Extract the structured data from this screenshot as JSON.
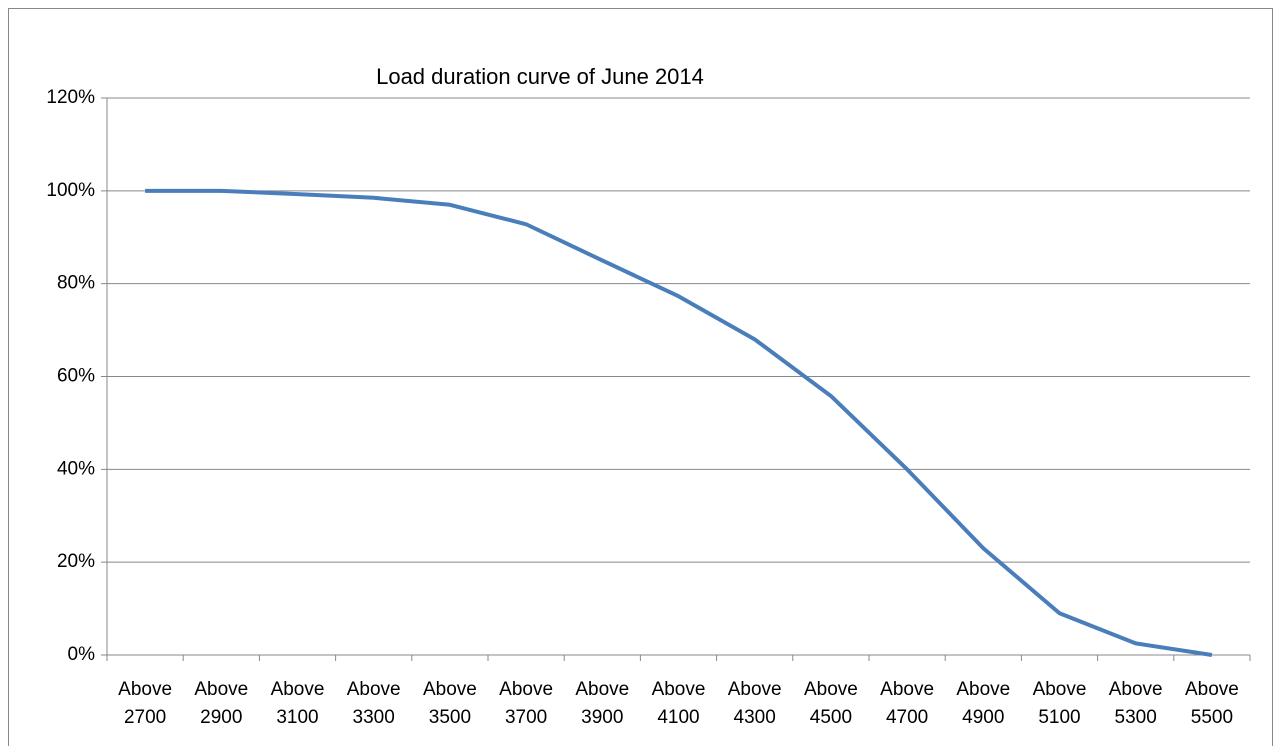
{
  "chart_data": {
    "type": "line",
    "title": "Load duration curve of June 2014",
    "categories": [
      "Above 2700",
      "Above 2900",
      "Above 3100",
      "Above 3300",
      "Above 3500",
      "Above 3700",
      "Above 3900",
      "Above 4100",
      "Above 4300",
      "Above 4500",
      "Above 4700",
      "Above 4900",
      "Above 5100",
      "Above 5300",
      "Above 5500"
    ],
    "series": [
      {
        "name": "Load duration",
        "color": "#4a7ebb",
        "values": [
          100,
          100,
          99.3,
          98.5,
          97,
          92.8,
          85,
          77.3,
          68,
          55.8,
          40,
          23,
          9,
          2.5,
          0
        ]
      }
    ],
    "ylim": [
      0,
      120
    ],
    "yticks": [
      {
        "value": 0,
        "label": "0%"
      },
      {
        "value": 20,
        "label": "20%"
      },
      {
        "value": 40,
        "label": "40%"
      },
      {
        "value": 60,
        "label": "60%"
      },
      {
        "value": 80,
        "label": "80%"
      },
      {
        "value": 100,
        "label": "100%"
      },
      {
        "value": 120,
        "label": "120%"
      }
    ],
    "grid": true
  }
}
